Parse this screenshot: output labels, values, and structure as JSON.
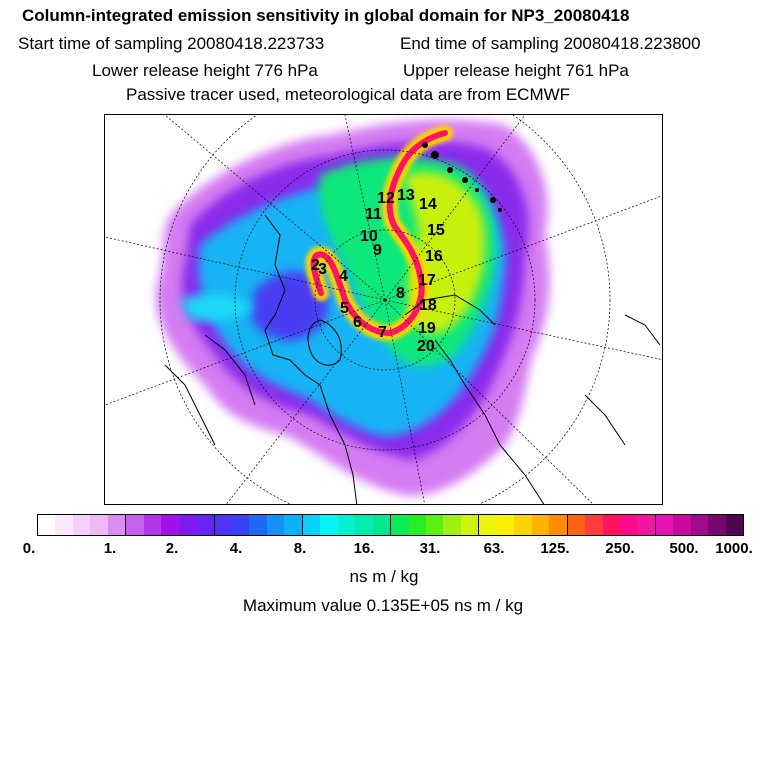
{
  "header": {
    "title": "Column-integrated emission sensitivity in global domain for NP3_20080418",
    "start_time": "Start time of sampling 20080418.223733",
    "end_time": "End time of sampling 20080418.223800",
    "lower_height": "Lower release height  776 hPa",
    "upper_height": "Upper release height  761 hPa",
    "tracer_info": "Passive tracer used, meteorological data are from ECMWF"
  },
  "colorbar": {
    "colors": [
      "#ffffff",
      "#fae8fb",
      "#f4d0f8",
      "#eeb8f6",
      "#dc8cf2",
      "#c860ef",
      "#b436ec",
      "#a510ea",
      "#7f19ef",
      "#6a24f2",
      "#4f34f2",
      "#3a40f5",
      "#1f6af5",
      "#1490f7",
      "#0eb0f7",
      "#0ad0fa",
      "#05f5f5",
      "#05f0d0",
      "#06ecb0",
      "#06e890",
      "#0cea5a",
      "#28ee20",
      "#5cf010",
      "#9ef010",
      "#d2f20e",
      "#eaf50c",
      "#fff000",
      "#ffd400",
      "#ffb200",
      "#ff8c00",
      "#ff6414",
      "#ff3c3c",
      "#ff1464",
      "#ff0a8c",
      "#f014a0",
      "#e614b4",
      "#c80aa0",
      "#a00a8c",
      "#78086e",
      "#50064e"
    ],
    "tick_labels": [
      "0.",
      "1.",
      "2.",
      "4.",
      "8.",
      "16.",
      "31.",
      "63.",
      "125.",
      "250.",
      "500.",
      "1000."
    ]
  },
  "units": "ns m / kg",
  "maximum": "Maximum value  0.135E+05 ns m / kg",
  "map": {
    "trajectory_labels": [
      "2",
      "3",
      "4",
      "5",
      "6",
      "7",
      "8",
      "9",
      "10",
      "11",
      "12",
      "13",
      "14",
      "15",
      "16",
      "17",
      "18",
      "19",
      "20"
    ]
  }
}
